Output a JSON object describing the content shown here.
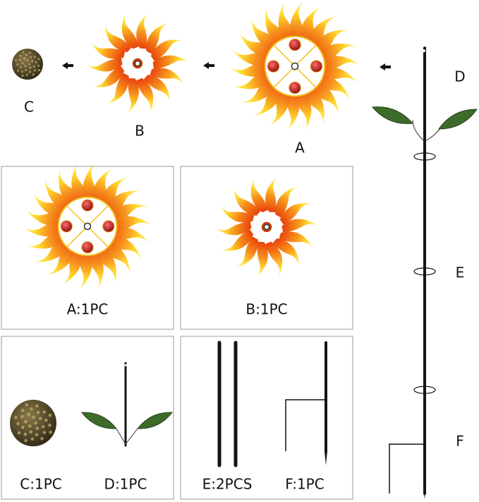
{
  "labels": {
    "a": "A",
    "b": "B",
    "c": "C",
    "d": "D",
    "e": "E",
    "f": "F"
  },
  "parts": [
    "A:1PC",
    "B:1PC",
    "C:1PC",
    "D:1PC",
    "E:2PCS",
    "F:1PC"
  ]
}
